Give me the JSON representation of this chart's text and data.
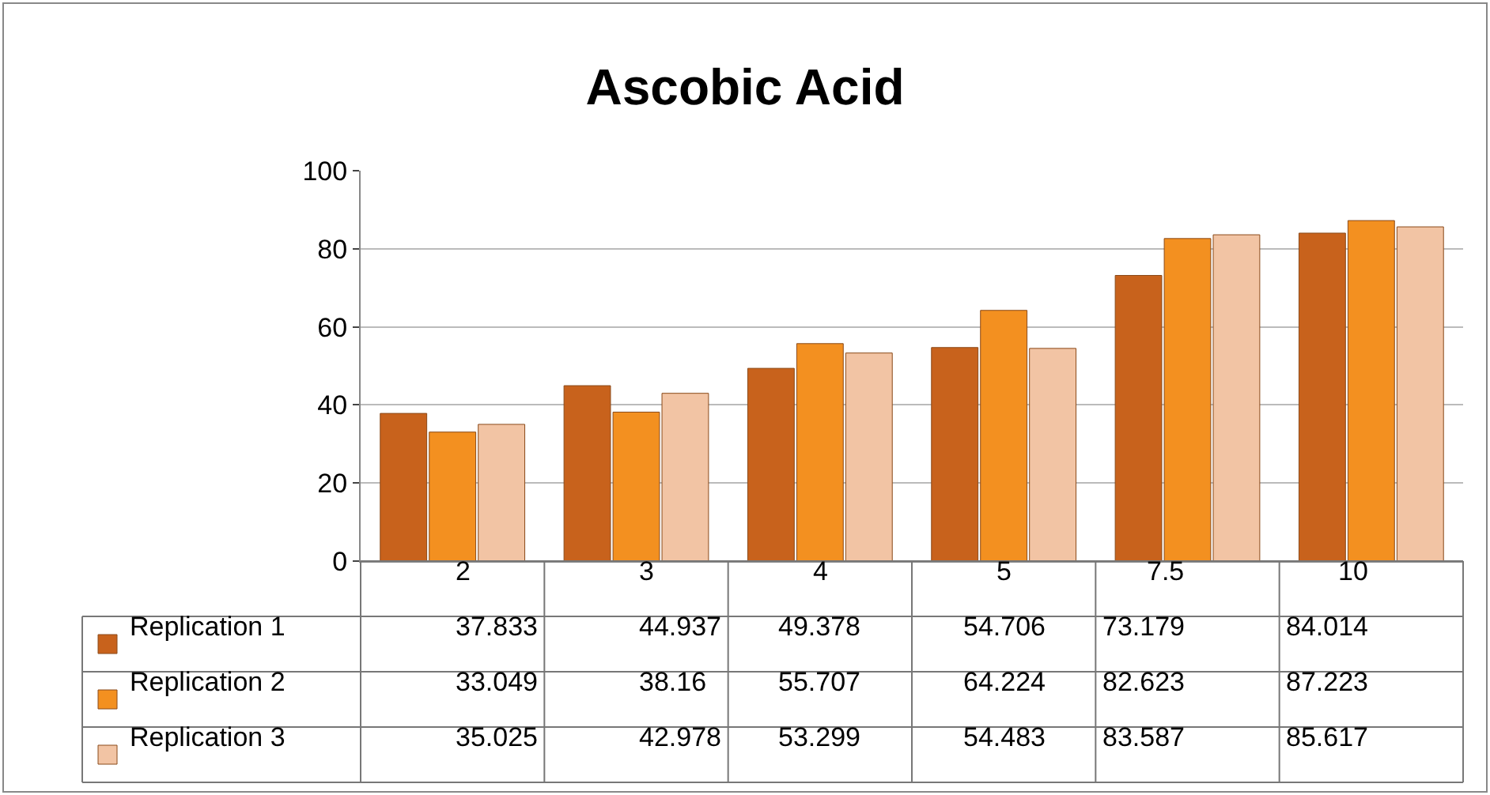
{
  "chart_data": {
    "type": "bar",
    "title": "Ascobic Acid",
    "categories": [
      "2",
      "3",
      "4",
      "5",
      "7.5",
      "10"
    ],
    "series": [
      {
        "name": "Replication 1",
        "color": "#c8621c",
        "values": [
          37.833,
          44.937,
          49.378,
          54.706,
          73.179,
          84.014
        ]
      },
      {
        "name": "Replication 2",
        "color": "#f39020",
        "values": [
          33.049,
          38.16,
          55.707,
          64.224,
          82.623,
          87.223
        ]
      },
      {
        "name": "Replication 3",
        "color": "#f2c4a4",
        "values": [
          35.025,
          42.978,
          53.299,
          54.483,
          83.587,
          85.617
        ]
      }
    ],
    "ylim": [
      0,
      100
    ],
    "yticks": [
      0,
      20,
      40,
      60,
      80,
      100
    ],
    "grid": "y",
    "legend": "bottom",
    "data_labels": true
  }
}
